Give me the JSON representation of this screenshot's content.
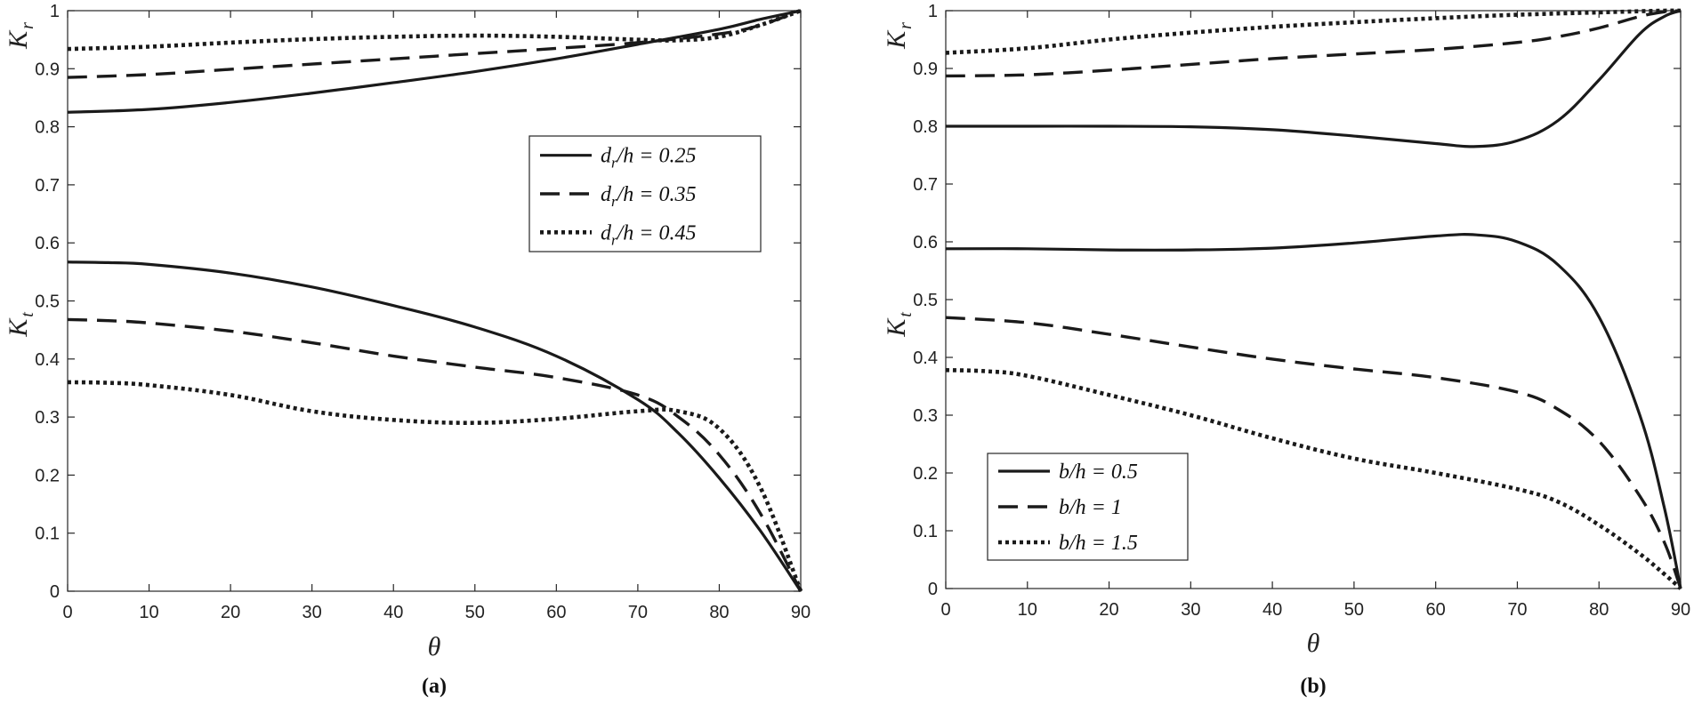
{
  "chart_data": [
    {
      "type": "line",
      "caption": "(a)",
      "xlabel": "θ",
      "ylabels": [
        {
          "main": "K",
          "sub": "r"
        },
        {
          "main": "K",
          "sub": "t"
        }
      ],
      "xlim": [
        0,
        90
      ],
      "ylim": [
        0,
        1
      ],
      "xticks": [
        "0",
        "10",
        "20",
        "30",
        "40",
        "50",
        "60",
        "70",
        "80",
        "90"
      ],
      "yticks": [
        "0",
        "0.1",
        "0.2",
        "0.3",
        "0.4",
        "0.5",
        "0.6",
        "0.7",
        "0.8",
        "0.9",
        "1"
      ],
      "legend_position": "center-right",
      "legend": [
        {
          "label": "d_r/h = 0.25",
          "style": "solid"
        },
        {
          "label": "d_r/h = 0.35",
          "style": "dashed"
        },
        {
          "label": "d_r/h = 0.45",
          "style": "dotted"
        }
      ],
      "series": [
        {
          "name": "Kr d_r/h=0.25",
          "style": "solid",
          "x": [
            0,
            10,
            20,
            30,
            40,
            50,
            60,
            70,
            80,
            85,
            90
          ],
          "y": [
            0.825,
            0.83,
            0.842,
            0.858,
            0.876,
            0.895,
            0.917,
            0.942,
            0.968,
            0.985,
            1.0
          ]
        },
        {
          "name": "Kr d_r/h=0.35",
          "style": "dashed",
          "x": [
            0,
            10,
            20,
            30,
            40,
            50,
            60,
            70,
            80,
            85,
            90
          ],
          "y": [
            0.885,
            0.89,
            0.899,
            0.908,
            0.917,
            0.926,
            0.935,
            0.945,
            0.96,
            0.975,
            1.0
          ]
        },
        {
          "name": "Kr d_r/h=0.45",
          "style": "dotted",
          "x": [
            0,
            10,
            20,
            30,
            40,
            50,
            60,
            70,
            75,
            80,
            85,
            90
          ],
          "y": [
            0.934,
            0.938,
            0.945,
            0.951,
            0.955,
            0.957,
            0.955,
            0.95,
            0.949,
            0.955,
            0.975,
            1.0
          ]
        },
        {
          "name": "Kt d_r/h=0.25",
          "style": "solid",
          "x": [
            0,
            5,
            10,
            20,
            30,
            40,
            50,
            60,
            70,
            75,
            80,
            85,
            90
          ],
          "y": [
            0.567,
            0.566,
            0.563,
            0.548,
            0.524,
            0.492,
            0.455,
            0.405,
            0.33,
            0.272,
            0.195,
            0.105,
            0.0
          ]
        },
        {
          "name": "Kt d_r/h=0.35",
          "style": "dashed",
          "x": [
            0,
            5,
            10,
            20,
            30,
            40,
            50,
            60,
            70,
            75,
            80,
            85,
            90
          ],
          "y": [
            0.468,
            0.466,
            0.462,
            0.448,
            0.428,
            0.405,
            0.386,
            0.368,
            0.338,
            0.3,
            0.235,
            0.135,
            0.0
          ]
        },
        {
          "name": "Kt d_r/h=0.45",
          "style": "dotted",
          "x": [
            0,
            5,
            10,
            20,
            30,
            40,
            50,
            60,
            70,
            75,
            80,
            85,
            90
          ],
          "y": [
            0.36,
            0.359,
            0.355,
            0.338,
            0.31,
            0.295,
            0.29,
            0.297,
            0.31,
            0.31,
            0.28,
            0.18,
            0.0
          ]
        }
      ]
    },
    {
      "type": "line",
      "caption": "(b)",
      "xlabel": "θ",
      "ylabels": [
        {
          "main": "K",
          "sub": "r"
        },
        {
          "main": "K",
          "sub": "t"
        }
      ],
      "xlim": [
        0,
        90
      ],
      "ylim": [
        0,
        1
      ],
      "xticks": [
        "0",
        "10",
        "20",
        "30",
        "40",
        "50",
        "60",
        "70",
        "80",
        "90"
      ],
      "yticks": [
        "0",
        "0.1",
        "0.2",
        "0.3",
        "0.4",
        "0.5",
        "0.6",
        "0.7",
        "0.8",
        "0.9",
        "1"
      ],
      "legend_position": "bottom-left",
      "legend": [
        {
          "label": "b/h = 0.5",
          "style": "solid"
        },
        {
          "label": "b/h = 1",
          "style": "dashed"
        },
        {
          "label": "b/h = 1.5",
          "style": "dotted"
        }
      ],
      "series": [
        {
          "name": "Kr b/h=0.5",
          "style": "solid",
          "x": [
            0,
            10,
            20,
            30,
            40,
            50,
            60,
            65,
            70,
            75,
            80,
            85,
            88,
            90
          ],
          "y": [
            0.8,
            0.8,
            0.8,
            0.799,
            0.794,
            0.783,
            0.77,
            0.765,
            0.775,
            0.81,
            0.88,
            0.96,
            0.99,
            1.0
          ]
        },
        {
          "name": "Kr b/h=1",
          "style": "dashed",
          "x": [
            0,
            10,
            20,
            30,
            40,
            50,
            60,
            70,
            75,
            80,
            85,
            88,
            90
          ],
          "y": [
            0.887,
            0.889,
            0.897,
            0.907,
            0.917,
            0.925,
            0.933,
            0.945,
            0.955,
            0.97,
            0.99,
            0.998,
            1.0
          ]
        },
        {
          "name": "Kr b/h=1.5",
          "style": "dotted",
          "x": [
            0,
            10,
            20,
            30,
            40,
            50,
            60,
            70,
            80,
            85,
            88,
            90
          ],
          "y": [
            0.927,
            0.935,
            0.95,
            0.962,
            0.972,
            0.98,
            0.987,
            0.993,
            0.997,
            0.999,
            1.0,
            1.0
          ]
        },
        {
          "name": "Kt b/h=0.5",
          "style": "solid",
          "x": [
            0,
            10,
            20,
            30,
            40,
            50,
            60,
            65,
            70,
            75,
            80,
            85,
            88,
            90
          ],
          "y": [
            0.588,
            0.588,
            0.586,
            0.586,
            0.589,
            0.598,
            0.61,
            0.612,
            0.6,
            0.56,
            0.47,
            0.3,
            0.14,
            0.0
          ]
        },
        {
          "name": "Kt b/h=1",
          "style": "dashed",
          "x": [
            0,
            10,
            20,
            30,
            40,
            50,
            60,
            70,
            75,
            80,
            85,
            88,
            90
          ],
          "y": [
            0.469,
            0.46,
            0.44,
            0.418,
            0.397,
            0.38,
            0.365,
            0.34,
            0.31,
            0.255,
            0.16,
            0.08,
            0.0
          ]
        },
        {
          "name": "Kt b/h=1.5",
          "style": "dotted",
          "x": [
            0,
            5,
            10,
            20,
            30,
            40,
            50,
            60,
            70,
            75,
            80,
            85,
            88,
            90
          ],
          "y": [
            0.378,
            0.376,
            0.368,
            0.335,
            0.3,
            0.26,
            0.225,
            0.2,
            0.172,
            0.15,
            0.11,
            0.06,
            0.025,
            0.0
          ]
        }
      ]
    }
  ]
}
